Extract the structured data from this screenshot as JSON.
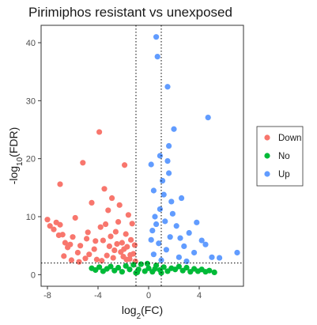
{
  "chart_data": {
    "type": "scatter",
    "title": "Pirimiphos resistant vs unexposed",
    "xlabel": "log2(FC)",
    "ylabel": "-log10(FDR)",
    "xlim": [
      -8.5,
      7.5
    ],
    "ylim": [
      -2,
      43
    ],
    "x_ticks": [
      -8,
      -4,
      0,
      4
    ],
    "y_ticks": [
      0,
      10,
      20,
      30,
      40
    ],
    "grid": false,
    "legend_position": "right",
    "thresholds": {
      "log2fc": [
        -1,
        1
      ],
      "neg_log10_fdr": 2
    },
    "series": [
      {
        "name": "Down",
        "color": "#F8766D",
        "points": [
          [
            -8,
            9.5
          ],
          [
            -7.8,
            8.4
          ],
          [
            -7.5,
            7.8
          ],
          [
            -7.3,
            9.0
          ],
          [
            -7.1,
            6.8
          ],
          [
            -7.0,
            8.6
          ],
          [
            -6.8,
            6.9
          ],
          [
            -6.6,
            5.5
          ],
          [
            -6.4,
            4.7
          ],
          [
            -6.2,
            5.2
          ],
          [
            -7.0,
            15.6
          ],
          [
            -6.0,
            6.5
          ],
          [
            -5.8,
            9.8
          ],
          [
            -5.6,
            3.8
          ],
          [
            -5.4,
            5.0
          ],
          [
            -5.2,
            19.3
          ],
          [
            -5.0,
            2.8
          ],
          [
            -4.9,
            6.2
          ],
          [
            -4.7,
            3.5
          ],
          [
            -4.5,
            12.4
          ],
          [
            -4.3,
            4.4
          ],
          [
            -4.1,
            2.6
          ],
          [
            -3.9,
            24.6
          ],
          [
            -3.8,
            8.2
          ],
          [
            -3.6,
            5.9
          ],
          [
            -3.5,
            14.8
          ],
          [
            -3.3,
            3.3
          ],
          [
            -3.2,
            11.1
          ],
          [
            -3.0,
            6.6
          ],
          [
            -2.9,
            13.2
          ],
          [
            -2.7,
            4.2
          ],
          [
            -2.6,
            7.4
          ],
          [
            -2.4,
            9.1
          ],
          [
            -2.3,
            12.0
          ],
          [
            -2.1,
            5.5
          ],
          [
            -2.0,
            3.1
          ],
          [
            -1.9,
            18.9
          ],
          [
            -1.8,
            7.0
          ],
          [
            -1.7,
            4.8
          ],
          [
            -1.6,
            10.3
          ],
          [
            -1.5,
            2.7
          ],
          [
            -1.4,
            6.0
          ],
          [
            -1.3,
            8.8
          ],
          [
            -1.2,
            3.6
          ],
          [
            -1.1,
            5.1
          ],
          [
            -1.05,
            2.3
          ],
          [
            -6.7,
            3.2
          ],
          [
            -6.1,
            2.5
          ],
          [
            -5.5,
            2.2
          ],
          [
            -4.8,
            7.3
          ],
          [
            -4.2,
            5.8
          ],
          [
            -3.7,
            2.4
          ],
          [
            -3.4,
            8.7
          ],
          [
            -3.1,
            4.9
          ],
          [
            -2.8,
            2.9
          ],
          [
            -2.5,
            5.3
          ],
          [
            -2.2,
            3.9
          ],
          [
            -1.95,
            4.4
          ],
          [
            -1.75,
            2.6
          ],
          [
            -1.45,
            3.4
          ]
        ]
      },
      {
        "name": "No",
        "color": "#00BA38",
        "points": [
          [
            -4.5,
            1.1
          ],
          [
            -4.2,
            0.8
          ],
          [
            -3.9,
            1.3
          ],
          [
            -3.6,
            0.6
          ],
          [
            -3.3,
            1.0
          ],
          [
            -3.0,
            1.4
          ],
          [
            -2.7,
            0.7
          ],
          [
            -2.4,
            1.2
          ],
          [
            -2.1,
            0.5
          ],
          [
            -1.8,
            1.5
          ],
          [
            -1.5,
            0.9
          ],
          [
            -1.2,
            1.7
          ],
          [
            -0.9,
            0.4
          ],
          [
            -0.6,
            1.8
          ],
          [
            -0.3,
            0.6
          ],
          [
            0.0,
            1.1
          ],
          [
            0.3,
            0.5
          ],
          [
            0.6,
            1.6
          ],
          [
            0.9,
            0.8
          ],
          [
            1.2,
            1.3
          ],
          [
            1.5,
            0.6
          ],
          [
            1.8,
            1.1
          ],
          [
            2.1,
            0.9
          ],
          [
            2.4,
            1.4
          ],
          [
            2.7,
            0.7
          ],
          [
            3.0,
            1.2
          ],
          [
            3.3,
            0.5
          ],
          [
            3.6,
            1.0
          ],
          [
            3.9,
            0.6
          ],
          [
            4.2,
            0.9
          ],
          [
            4.5,
            0.5
          ],
          [
            4.8,
            0.7
          ],
          [
            5.2,
            0.4
          ],
          [
            -0.8,
            0.9
          ],
          [
            -0.1,
            1.9
          ],
          [
            0.5,
            1.0
          ],
          [
            -1.0,
            0.3
          ],
          [
            1.0,
            0.3
          ]
        ]
      },
      {
        "name": "Up",
        "color": "#619CFF",
        "points": [
          [
            0.6,
            41.0
          ],
          [
            0.7,
            37.6
          ],
          [
            1.5,
            32.4
          ],
          [
            2.0,
            25.1
          ],
          [
            4.7,
            27.1
          ],
          [
            1.5,
            19.6
          ],
          [
            0.2,
            19.0
          ],
          [
            1.6,
            17.5
          ],
          [
            1.1,
            16.2
          ],
          [
            0.4,
            14.5
          ],
          [
            2.6,
            13.2
          ],
          [
            1.8,
            12.6
          ],
          [
            0.9,
            11.3
          ],
          [
            0.5,
            10.0
          ],
          [
            1.3,
            9.2
          ],
          [
            2.2,
            8.4
          ],
          [
            0.3,
            7.6
          ],
          [
            3.2,
            7.2
          ],
          [
            1.7,
            6.5
          ],
          [
            4.2,
            5.9
          ],
          [
            0.8,
            5.4
          ],
          [
            2.8,
            4.9
          ],
          [
            1.4,
            4.3
          ],
          [
            3.6,
            3.8
          ],
          [
            5.0,
            3.0
          ],
          [
            5.6,
            2.9
          ],
          [
            7.0,
            3.8
          ],
          [
            0.4,
            3.5
          ],
          [
            2.4,
            3.0
          ],
          [
            1.0,
            2.5
          ],
          [
            3.0,
            2.3
          ],
          [
            4.5,
            5.2
          ],
          [
            0.2,
            6.0
          ],
          [
            1.9,
            10.5
          ],
          [
            3.8,
            9.0
          ],
          [
            0.6,
            8.7
          ],
          [
            2.5,
            6.3
          ],
          [
            1.2,
            13.8
          ],
          [
            0.9,
            20.5
          ],
          [
            1.6,
            22.2
          ]
        ]
      }
    ],
    "x_tick_labels": [
      "-8",
      "-4",
      "0",
      "4"
    ],
    "y_tick_labels": [
      "0",
      "10",
      "20",
      "30",
      "40"
    ],
    "legend": {
      "title": "",
      "items": [
        "Down",
        "No",
        "Up"
      ]
    }
  }
}
